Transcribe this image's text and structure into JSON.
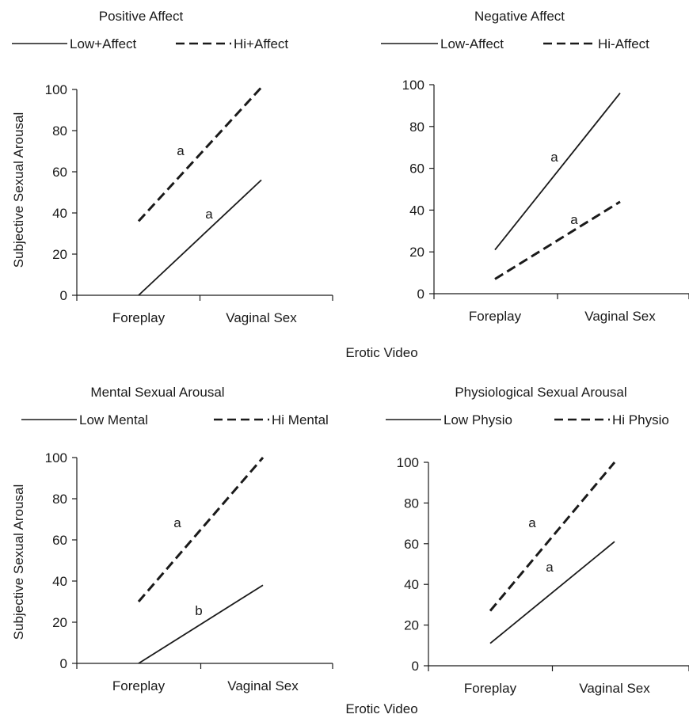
{
  "shared": {
    "y_axis_label": "Subjective Sexual Arousal",
    "x_axis_label": "Erotic Video"
  },
  "chart_data": [
    {
      "type": "line",
      "title": "Positive Affect",
      "categories": [
        "Foreplay",
        "Vaginal Sex"
      ],
      "ylim": [
        0,
        100
      ],
      "yticks": [
        0,
        20,
        40,
        60,
        80,
        100
      ],
      "series": [
        {
          "name": "Low+Affect",
          "style": "solid",
          "values": [
            0,
            56
          ],
          "annotation": "a"
        },
        {
          "name": "Hi+Affect",
          "style": "dashed",
          "values": [
            36,
            101
          ],
          "annotation": "a"
        }
      ]
    },
    {
      "type": "line",
      "title": "Negative Affect",
      "categories": [
        "Foreplay",
        "Vaginal Sex"
      ],
      "ylim": [
        0,
        100
      ],
      "yticks": [
        0,
        20,
        40,
        60,
        80,
        100
      ],
      "series": [
        {
          "name": "Low-Affect",
          "style": "solid",
          "values": [
            21,
            96
          ],
          "annotation": "a"
        },
        {
          "name": "Hi-Affect",
          "style": "dashed",
          "values": [
            7,
            44
          ],
          "annotation": "a"
        }
      ]
    },
    {
      "type": "line",
      "title": "Mental Sexual Arousal",
      "categories": [
        "Foreplay",
        "Vaginal Sex"
      ],
      "ylim": [
        0,
        100
      ],
      "yticks": [
        0,
        20,
        40,
        60,
        80,
        100
      ],
      "series": [
        {
          "name": "Low Mental",
          "style": "solid",
          "values": [
            0,
            38
          ],
          "annotation": "b"
        },
        {
          "name": "Hi Mental",
          "style": "dashed",
          "values": [
            30,
            100
          ],
          "annotation": "a"
        }
      ]
    },
    {
      "type": "line",
      "title": "Physiological Sexual Arousal",
      "categories": [
        "Foreplay",
        "Vaginal Sex"
      ],
      "ylim": [
        0,
        100
      ],
      "yticks": [
        0,
        20,
        40,
        60,
        80,
        100
      ],
      "series": [
        {
          "name": "Low Physio",
          "style": "solid",
          "values": [
            11,
            61
          ],
          "annotation": "a"
        },
        {
          "name": "Hi Physio",
          "style": "dashed",
          "values": [
            27,
            100
          ],
          "annotation": "a"
        }
      ]
    }
  ]
}
